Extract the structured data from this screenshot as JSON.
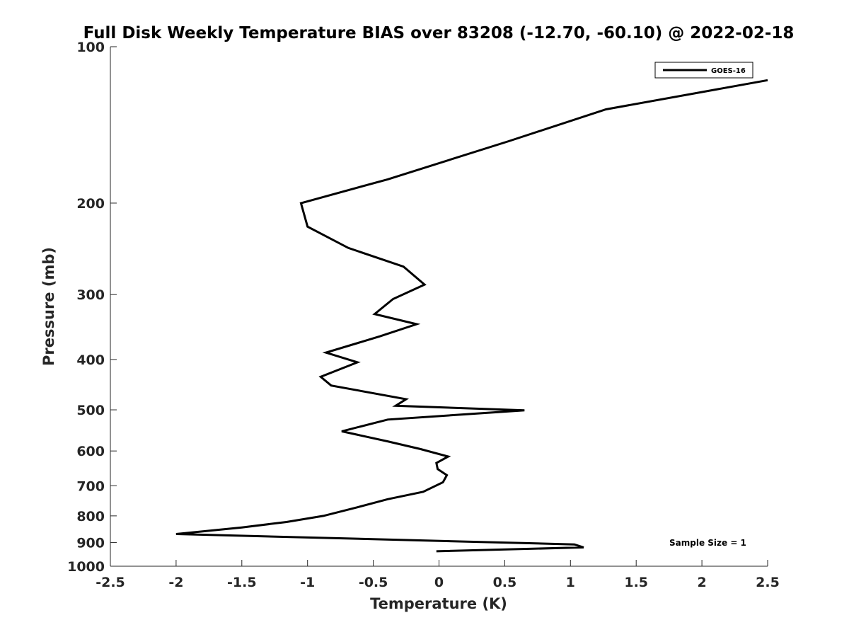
{
  "chart_data": {
    "type": "line",
    "title": "Full Disk Weekly Temperature BIAS over 83208 (-12.70, -60.10) @ 2022-02-18",
    "xlabel": "Temperature (K)",
    "ylabel": "Pressure (mb)",
    "xlim": [
      -2.5,
      2.5
    ],
    "ylim": [
      100,
      1000
    ],
    "y_scale": "log",
    "y_reversed": true,
    "x_ticks": [
      -2.5,
      -2,
      -1.5,
      -1,
      -0.5,
      0,
      0.5,
      1,
      1.5,
      2,
      2.5
    ],
    "x_tick_labels": [
      "-2.5",
      "-2",
      "-1.5",
      "-1",
      "-0.5",
      "0",
      "0.5",
      "1",
      "1.5",
      "2",
      "2.5"
    ],
    "y_ticks": [
      100,
      200,
      300,
      400,
      500,
      600,
      700,
      800,
      900,
      1000
    ],
    "y_tick_labels": [
      "100",
      "200",
      "300",
      "400",
      "500",
      "600",
      "700",
      "800",
      "900",
      "1000"
    ],
    "grid": false,
    "legend_position": "top-right",
    "series": [
      {
        "name": "GOES-16",
        "color": "#000000",
        "x": [
          2.5,
          1.27,
          0.53,
          -0.39,
          -1.05,
          -1.0,
          -0.69,
          -0.27,
          -0.11,
          -0.35,
          -0.49,
          -0.17,
          -0.45,
          -0.86,
          -0.62,
          -0.9,
          -0.82,
          -0.25,
          -0.33,
          0.65,
          -0.39,
          -0.74,
          -0.39,
          -0.14,
          0.07,
          -0.02,
          -0.01,
          0.06,
          0.03,
          -0.12,
          -0.39,
          -0.62,
          -0.88,
          -1.16,
          -1.5,
          -2.0,
          1.03,
          1.1,
          -0.02
        ],
        "y": [
          116,
          132,
          152,
          180,
          200,
          222,
          244,
          265,
          287,
          306,
          327,
          342,
          361,
          388,
          405,
          432,
          449,
          477,
          491,
          501,
          522,
          550,
          575,
          595,
          615,
          633,
          650,
          668,
          689,
          719,
          743,
          770,
          800,
          822,
          842,
          867,
          908,
          920,
          936
        ]
      }
    ],
    "annotations": [
      "Sample Size = 1"
    ]
  }
}
